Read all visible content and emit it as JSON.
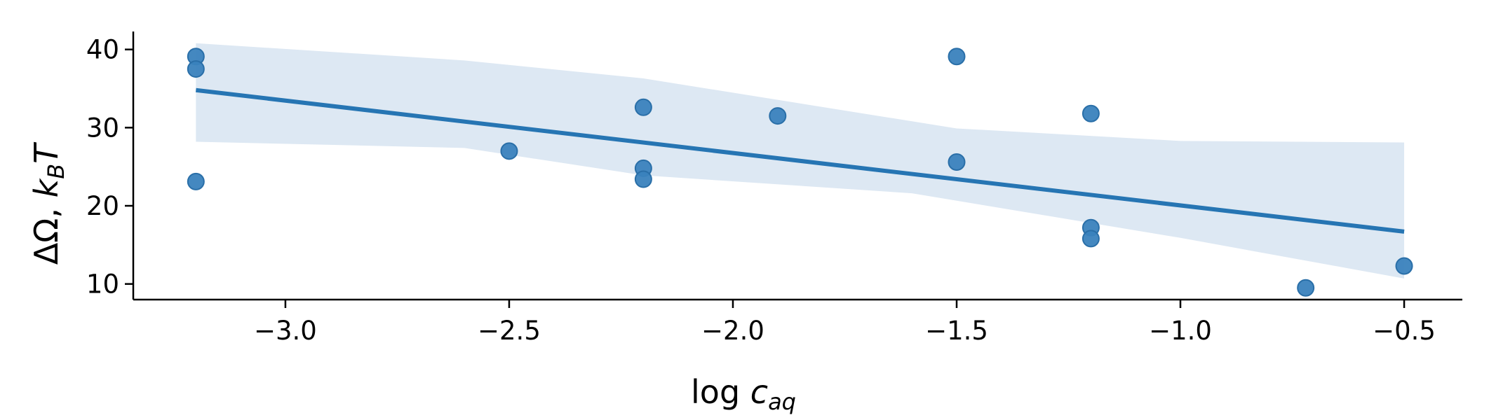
{
  "chart_data": {
    "type": "scatter",
    "xlabel": {
      "base": "log ",
      "var": "c",
      "sub": "aq"
    },
    "ylabel": {
      "prefix": "ΔΩ, ",
      "var": "k",
      "sub": "B",
      "var2": "T"
    },
    "xlim": [
      -3.34,
      -0.37
    ],
    "ylim": [
      8.0,
      42.3
    ],
    "x_ticks": [
      -3.0,
      -2.5,
      -2.0,
      -1.5,
      -1.0,
      -0.5
    ],
    "x_tick_labels": [
      "−3.0",
      "−2.5",
      "−2.0",
      "−1.5",
      "−1.0",
      "−0.5"
    ],
    "y_ticks": [
      10,
      20,
      30,
      40
    ],
    "y_tick_labels": [
      "10",
      "20",
      "30",
      "40"
    ],
    "grid": false,
    "series": [
      {
        "x": [
          -3.2,
          -3.2,
          -3.2,
          -2.5,
          -2.2,
          -2.2,
          -2.2,
          -1.9,
          -1.5,
          -1.5,
          -1.2,
          -1.2,
          -1.2,
          -0.72,
          -0.5
        ],
        "y": [
          39.1,
          37.5,
          23.1,
          27.0,
          32.6,
          24.8,
          23.4,
          31.5,
          39.1,
          25.6,
          31.8,
          17.2,
          15.8,
          9.5,
          12.3
        ]
      }
    ],
    "regression": {
      "x": [
        -3.2,
        -0.5
      ],
      "y": [
        34.8,
        16.7
      ],
      "ci_upper": [
        [
          -3.2,
          40.8
        ],
        [
          -2.6,
          38.6
        ],
        [
          -2.2,
          36.3
        ],
        [
          -1.5,
          29.9
        ],
        [
          -1.0,
          28.3
        ],
        [
          -0.5,
          28.1
        ]
      ],
      "ci_lower": [
        [
          -3.2,
          28.2
        ],
        [
          -2.6,
          27.4
        ],
        [
          -2.2,
          23.9
        ],
        [
          -1.6,
          21.6
        ],
        [
          -1.0,
          15.9
        ],
        [
          -0.5,
          10.7
        ]
      ]
    },
    "colors": {
      "points": "#3a82bd",
      "point_edge": "#2a6fa8",
      "line": "#2675b3",
      "band": "#dde8f3"
    }
  }
}
